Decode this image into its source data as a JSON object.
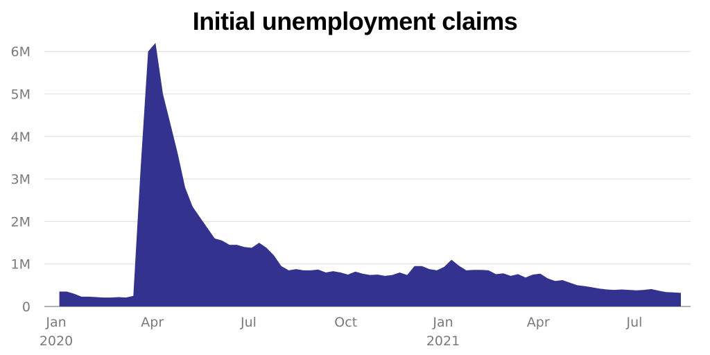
{
  "chart_data": {
    "type": "area",
    "title": "Initial unemployment claims",
    "xlabel": "",
    "ylabel": "",
    "y_tick_labels": [
      "0",
      "1M",
      "2M",
      "3M",
      "4M",
      "5M",
      "6M"
    ],
    "y_tick_values": [
      0,
      1000000,
      2000000,
      3000000,
      4000000,
      5000000,
      6000000
    ],
    "ylim": [
      0,
      6200000
    ],
    "x_tick_labels": [
      {
        "label": "Jan",
        "year": "2020",
        "date": "2020-01-01"
      },
      {
        "label": "Apr",
        "year": "",
        "date": "2020-04-01"
      },
      {
        "label": "Jul",
        "year": "",
        "date": "2020-07-01"
      },
      {
        "label": "Oct",
        "year": "",
        "date": "2020-10-01"
      },
      {
        "label": "Jan",
        "year": "2021",
        "date": "2021-01-01"
      },
      {
        "label": "Apr",
        "year": "",
        "date": "2021-04-01"
      },
      {
        "label": "Jul",
        "year": "",
        "date": "2021-07-01"
      }
    ],
    "grid": true,
    "color": "#33338f",
    "series": [
      {
        "x": [
          "2020-01-04",
          "2020-01-11",
          "2020-01-18",
          "2020-01-25",
          "2020-02-01",
          "2020-02-08",
          "2020-02-15",
          "2020-02-22",
          "2020-02-29",
          "2020-03-07",
          "2020-03-14",
          "2020-03-21",
          "2020-03-28",
          "2020-04-04",
          "2020-04-11",
          "2020-04-18",
          "2020-04-25",
          "2020-05-02",
          "2020-05-09",
          "2020-05-16",
          "2020-05-23",
          "2020-05-30",
          "2020-06-06",
          "2020-06-13",
          "2020-06-20",
          "2020-06-27",
          "2020-07-04",
          "2020-07-11",
          "2020-07-18",
          "2020-07-25",
          "2020-08-01",
          "2020-08-08",
          "2020-08-15",
          "2020-08-22",
          "2020-08-29",
          "2020-09-05",
          "2020-09-12",
          "2020-09-19",
          "2020-09-26",
          "2020-10-03",
          "2020-10-10",
          "2020-10-17",
          "2020-10-24",
          "2020-10-31",
          "2020-11-07",
          "2020-11-14",
          "2020-11-21",
          "2020-11-28",
          "2020-12-05",
          "2020-12-12",
          "2020-12-19",
          "2020-12-26",
          "2021-01-02",
          "2021-01-09",
          "2021-01-16",
          "2021-01-23",
          "2021-01-30",
          "2021-02-06",
          "2021-02-13",
          "2021-02-20",
          "2021-02-27",
          "2021-03-06",
          "2021-03-13",
          "2021-03-20",
          "2021-03-27",
          "2021-04-03",
          "2021-04-10",
          "2021-04-17",
          "2021-04-24",
          "2021-05-01",
          "2021-05-08",
          "2021-05-15",
          "2021-05-22",
          "2021-05-29",
          "2021-06-05",
          "2021-06-12",
          "2021-06-19",
          "2021-06-26",
          "2021-07-03",
          "2021-07-10",
          "2021-07-17",
          "2021-07-24",
          "2021-07-31",
          "2021-08-07",
          "2021-08-14"
        ],
        "values": [
          350000,
          350000,
          300000,
          230000,
          230000,
          220000,
          210000,
          210000,
          220000,
          210000,
          250000,
          3300000,
          6000000,
          6200000,
          5000000,
          4300000,
          3600000,
          2800000,
          2350000,
          2100000,
          1850000,
          1600000,
          1550000,
          1450000,
          1450000,
          1400000,
          1380000,
          1500000,
          1380000,
          1200000,
          950000,
          850000,
          880000,
          850000,
          850000,
          870000,
          800000,
          830000,
          800000,
          750000,
          820000,
          770000,
          740000,
          750000,
          720000,
          740000,
          800000,
          740000,
          950000,
          950000,
          880000,
          850000,
          930000,
          1100000,
          960000,
          850000,
          860000,
          860000,
          850000,
          760000,
          780000,
          720000,
          760000,
          680000,
          750000,
          770000,
          660000,
          600000,
          620000,
          560000,
          500000,
          480000,
          450000,
          420000,
          400000,
          390000,
          400000,
          390000,
          380000,
          390000,
          410000,
          370000,
          340000,
          330000,
          320000
        ]
      }
    ]
  }
}
